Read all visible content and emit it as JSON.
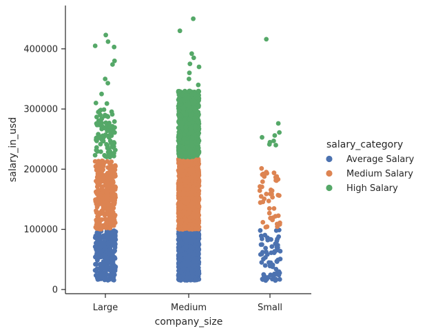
{
  "chart_data": {
    "type": "scatter",
    "subtype": "strip",
    "xlabel": "company_size",
    "ylabel": "salary_in_usd",
    "categories": [
      "Large",
      "Medium",
      "Small"
    ],
    "yticks": [
      0,
      100000,
      200000,
      300000,
      400000
    ],
    "ylim": [
      -7000,
      472000
    ],
    "grid": false,
    "legend": {
      "title": "salary_category",
      "placement": "right",
      "entries": [
        "Average Salary",
        "Medium Salary",
        "High Salary"
      ]
    },
    "colors": {
      "Average Salary": "#4c72b0",
      "Medium Salary": "#dd8452",
      "High Salary": "#55a868"
    },
    "series": [
      {
        "name": "Average Salary",
        "ranges": {
          "Large": [
            15000,
            99000
          ],
          "Medium": [
            15000,
            99000
          ],
          "Small": [
            15000,
            99000
          ]
        },
        "counts": {
          "Large": 260,
          "Medium": 900,
          "Small": 70
        }
      },
      {
        "name": "Medium Salary",
        "ranges": {
          "Large": [
            100000,
            215000
          ],
          "Medium": [
            100000,
            218000
          ],
          "Small": [
            100000,
            210000
          ]
        },
        "counts": {
          "Large": 300,
          "Medium": 1400,
          "Small": 45
        }
      },
      {
        "name": "High Salary",
        "ranges": {
          "Large": [
            220000,
            300000
          ],
          "Medium": [
            220000,
            330000
          ],
          "Small": [
            240000,
            276000
          ]
        },
        "counts": {
          "Large": 90,
          "Medium": 700,
          "Small": 4
        }
      }
    ],
    "outliers": [
      {
        "category": "Large",
        "series": "High Salary",
        "y": 423000
      },
      {
        "category": "Large",
        "series": "High Salary",
        "y": 412000
      },
      {
        "category": "Large",
        "series": "High Salary",
        "y": 405000
      },
      {
        "category": "Large",
        "series": "High Salary",
        "y": 403000
      },
      {
        "category": "Large",
        "series": "High Salary",
        "y": 380000
      },
      {
        "category": "Large",
        "series": "High Salary",
        "y": 374000
      },
      {
        "category": "Large",
        "series": "High Salary",
        "y": 350000
      },
      {
        "category": "Large",
        "series": "High Salary",
        "y": 343000
      },
      {
        "category": "Large",
        "series": "High Salary",
        "y": 325000
      },
      {
        "category": "Large",
        "series": "High Salary",
        "y": 310000
      },
      {
        "category": "Large",
        "series": "High Salary",
        "y": 309000
      },
      {
        "category": "Medium",
        "series": "High Salary",
        "y": 450000
      },
      {
        "category": "Medium",
        "series": "High Salary",
        "y": 430000
      },
      {
        "category": "Medium",
        "series": "High Salary",
        "y": 392000
      },
      {
        "category": "Medium",
        "series": "High Salary",
        "y": 385000
      },
      {
        "category": "Medium",
        "series": "High Salary",
        "y": 375000
      },
      {
        "category": "Medium",
        "series": "High Salary",
        "y": 370000
      },
      {
        "category": "Medium",
        "series": "High Salary",
        "y": 360000
      },
      {
        "category": "Medium",
        "series": "High Salary",
        "y": 350000
      },
      {
        "category": "Medium",
        "series": "High Salary",
        "y": 340000
      },
      {
        "category": "Small",
        "series": "High Salary",
        "y": 416000
      },
      {
        "category": "Small",
        "series": "High Salary",
        "y": 276000
      },
      {
        "category": "Small",
        "series": "High Salary",
        "y": 261000
      },
      {
        "category": "Small",
        "series": "High Salary",
        "y": 256000
      },
      {
        "category": "Small",
        "series": "High Salary",
        "y": 240000
      }
    ]
  }
}
